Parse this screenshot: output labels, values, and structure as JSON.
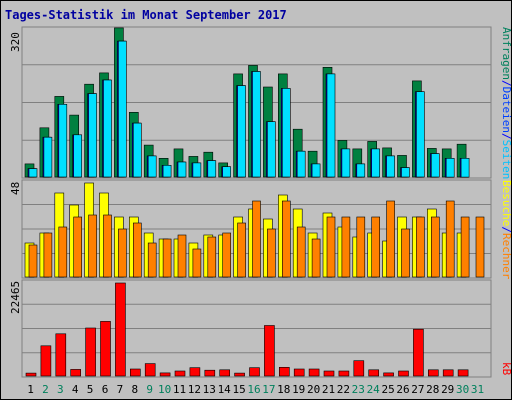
{
  "title": "Tages-Statistik im Monat September 2017",
  "axis_tops": {
    "top": "320",
    "middle": "48",
    "bottom": "22465"
  },
  "right_labels": {
    "top": [
      {
        "text": "Anfragen",
        "color": "#00805c"
      },
      {
        "text": "/",
        "color": "#0000ff"
      },
      {
        "text": "Dateien",
        "color": "#0040ff"
      },
      {
        "text": "/",
        "color": "#0000ff"
      },
      {
        "text": "Seiten",
        "color": "#00c0ff"
      }
    ],
    "middle": [
      {
        "text": "Besuche",
        "color": "#ffff00"
      },
      {
        "text": "/",
        "color": "#0000ff"
      },
      {
        "text": "Rechner",
        "color": "#ff8000"
      }
    ],
    "bottom": [
      {
        "text": "kB",
        "color": "#ff0000"
      }
    ]
  },
  "colors": {
    "anfragen": "#008040",
    "dateien": "#0000ff",
    "seiten": "#00e0ff",
    "besuche": "#ffff00",
    "rechner": "#ff8000",
    "kb": "#ff0000",
    "weekday": "#000000",
    "weekend": "#00805c"
  },
  "chart_data": [
    {
      "type": "bar",
      "ylim": [
        0,
        320
      ],
      "categories": [
        "1",
        "2",
        "3",
        "4",
        "5",
        "6",
        "7",
        "8",
        "9",
        "10",
        "11",
        "12",
        "13",
        "14",
        "15",
        "16",
        "17",
        "18",
        "19",
        "20",
        "21",
        "22",
        "23",
        "24",
        "25",
        "26",
        "27",
        "28",
        "29",
        "30",
        "31"
      ],
      "weekend_days": [
        "2",
        "3",
        "9",
        "10",
        "16",
        "17",
        "23",
        "24",
        "30",
        "31"
      ],
      "series": [
        {
          "name": "Anfragen",
          "values": [
            28,
            105,
            172,
            132,
            198,
            222,
            318,
            138,
            68,
            40,
            60,
            44,
            53,
            30,
            220,
            238,
            192,
            220,
            102,
            55,
            234,
            78,
            60,
            76,
            62,
            46,
            205,
            61,
            60,
            70,
            null
          ]
        },
        {
          "name": "Dateien",
          "values": [
            18,
            85,
            155,
            90,
            178,
            207,
            290,
            115,
            45,
            25,
            32,
            30,
            35,
            22,
            195,
            225,
            118,
            189,
            55,
            28,
            220,
            60,
            28,
            60,
            45,
            20,
            182,
            50,
            40,
            40,
            null
          ]
        },
        {
          "name": "Seiten",
          "values": [
            18,
            85,
            155,
            90,
            178,
            207,
            290,
            115,
            45,
            25,
            32,
            30,
            35,
            22,
            195,
            225,
            118,
            189,
            55,
            28,
            220,
            60,
            28,
            60,
            45,
            20,
            182,
            50,
            40,
            40,
            null
          ]
        }
      ]
    },
    {
      "type": "bar",
      "ylim": [
        0,
        48
      ],
      "categories": [
        "1",
        "2",
        "3",
        "4",
        "5",
        "6",
        "7",
        "8",
        "9",
        "10",
        "11",
        "12",
        "13",
        "14",
        "15",
        "16",
        "17",
        "18",
        "19",
        "20",
        "21",
        "22",
        "23",
        "24",
        "25",
        "26",
        "27",
        "28",
        "29",
        "30",
        "31"
      ],
      "series": [
        {
          "name": "Besuche",
          "values": [
            17,
            22,
            42,
            36,
            47,
            42,
            30,
            30,
            22,
            19,
            19,
            17,
            21,
            21,
            30,
            34,
            29,
            41,
            34,
            22,
            32,
            25,
            20,
            22,
            18,
            30,
            30,
            34,
            22,
            22,
            null
          ]
        },
        {
          "name": "Rechner",
          "values": [
            16,
            22,
            25,
            30,
            31,
            31,
            24,
            27,
            17,
            19,
            21,
            14,
            20,
            22,
            27,
            38,
            24,
            38,
            25,
            19,
            30,
            30,
            30,
            30,
            38,
            24,
            30,
            30,
            38,
            30,
            30
          ]
        }
      ]
    },
    {
      "type": "bar",
      "ylim": [
        0,
        22465
      ],
      "categories": [
        "1",
        "2",
        "3",
        "4",
        "5",
        "6",
        "7",
        "8",
        "9",
        "10",
        "11",
        "12",
        "13",
        "14",
        "15",
        "16",
        "17",
        "18",
        "19",
        "20",
        "21",
        "22",
        "23",
        "24",
        "25",
        "26",
        "27",
        "28",
        "29",
        "30",
        "31"
      ],
      "series": [
        {
          "name": "kB",
          "values": [
            700,
            7300,
            10200,
            1600,
            11600,
            13200,
            22465,
            1700,
            3000,
            750,
            1200,
            2000,
            1400,
            1500,
            700,
            2000,
            12200,
            2100,
            1700,
            1700,
            1200,
            1200,
            3700,
            1500,
            750,
            1200,
            11300,
            1500,
            1500,
            1500,
            null
          ]
        }
      ]
    }
  ]
}
